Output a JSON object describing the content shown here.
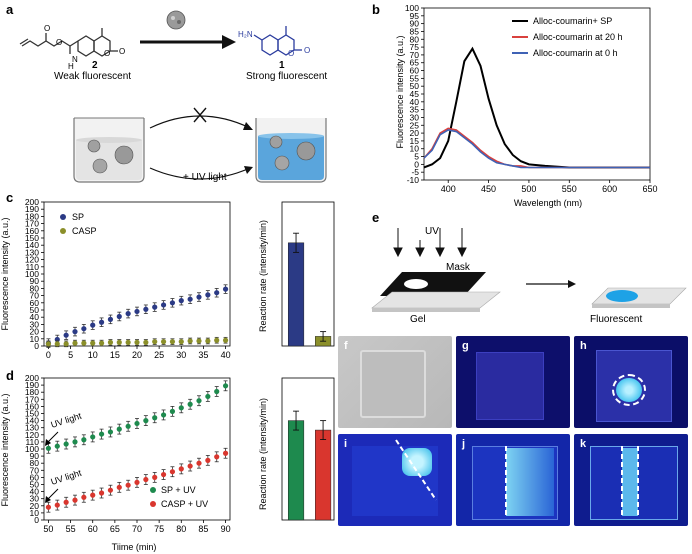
{
  "panel_a": {
    "label": "a",
    "compound2_number": "2",
    "compound2_caption": "Weak fluorescent",
    "compound1_number": "1",
    "compound1_caption": "Strong fluorescent",
    "uv_label": "+ UV light",
    "colors": {
      "molecule": "#333333",
      "product": "#2b3c9e",
      "liquid": "#5aa5dc"
    }
  },
  "panel_b": {
    "label": "b",
    "legend": [
      "Alloc-coumarin+ SP",
      "Alloc-coumarin at 20 h",
      "Alloc-coumarin at 0 h"
    ],
    "ylabel": "Fluorescence intensity (a.u.)",
    "xlabel": "Wavelength (nm)",
    "colors": [
      "#000000",
      "#d9413e",
      "#3f62b5"
    ]
  },
  "panel_c": {
    "label": "c",
    "ylabel": "Fluorescence intensity (a.u.)",
    "legend": [
      "SP",
      "CASP"
    ],
    "colors": [
      "#2b3a85",
      "#8b8f2a"
    ],
    "bar_ylabel": "Reaction rate (intensity/min)"
  },
  "panel_d": {
    "label": "d",
    "ylabel": "Fluorescence intensity (a.u.)",
    "xlabel": "Tiime (min)",
    "legend": [
      "SP + UV",
      "CASP + UV"
    ],
    "uv_annotations": [
      "UV light",
      "UV light"
    ],
    "colors": [
      "#1e8a4e",
      "#d9362e"
    ],
    "bar_ylabel": "Reaction rate (intensity/min)"
  },
  "panel_e": {
    "label": "e",
    "uv": "UV",
    "mask": "Mask",
    "gel": "Gel",
    "fluorescent": "Fluorescent"
  },
  "photos": [
    {
      "tag": "f",
      "tag_color": "#ffffff"
    },
    {
      "tag": "g",
      "tag_color": "#ffffff"
    },
    {
      "tag": "h",
      "tag_color": "#ffffff"
    },
    {
      "tag": "i",
      "tag_color": "#ffffff"
    },
    {
      "tag": "j",
      "tag_color": "#ffffff"
    },
    {
      "tag": "k",
      "tag_color": "#ffffff"
    }
  ],
  "chart_data": [
    {
      "id": "b",
      "type": "line",
      "title": "",
      "xlabel": "Wavelength (nm)",
      "ylabel": "Fluorescence intensity (a.u.)",
      "xlim": [
        370,
        650
      ],
      "ylim": [
        -10,
        100
      ],
      "xticks": [
        400,
        450,
        500,
        550,
        600,
        650
      ],
      "yticks": [
        -10,
        -5,
        0,
        5,
        10,
        15,
        20,
        25,
        30,
        35,
        40,
        45,
        50,
        55,
        60,
        65,
        70,
        75,
        80,
        85,
        90,
        95,
        100
      ],
      "legend_position": "top-right",
      "series": [
        {
          "name": "Alloc-coumarin+ SP",
          "x": [
            370,
            380,
            390,
            400,
            410,
            420,
            430,
            440,
            450,
            460,
            470,
            480,
            490,
            500,
            520,
            550,
            600,
            650
          ],
          "y": [
            -2,
            0,
            4,
            15,
            40,
            66,
            74,
            63,
            42,
            25,
            13,
            6,
            2,
            0,
            -1,
            -2,
            -2,
            -2
          ]
        },
        {
          "name": "Alloc-coumarin at 20 h",
          "x": [
            370,
            380,
            390,
            400,
            410,
            420,
            430,
            440,
            450,
            460,
            470,
            480,
            490,
            500,
            550,
            600,
            650
          ],
          "y": [
            4,
            10,
            20,
            23,
            22,
            18,
            14,
            9,
            5,
            2,
            0,
            -1,
            -1,
            -2,
            -2,
            -2,
            -2
          ]
        },
        {
          "name": "Alloc-coumarin at 0 h",
          "x": [
            370,
            380,
            390,
            400,
            410,
            420,
            430,
            440,
            450,
            460,
            470,
            480,
            490,
            500,
            550,
            600,
            650
          ],
          "y": [
            4,
            9,
            19,
            22,
            21,
            17,
            13,
            8,
            4,
            1,
            0,
            -1,
            -2,
            -2,
            -2,
            -2,
            -2
          ]
        }
      ]
    },
    {
      "id": "c-line",
      "type": "scatter",
      "xlabel": "",
      "ylabel": "Fluorescence intensity (a.u.)",
      "xlim": [
        -1,
        41
      ],
      "ylim": [
        0,
        200
      ],
      "xticks": [
        0,
        5,
        10,
        15,
        20,
        25,
        30,
        35,
        40
      ],
      "yticks": [
        0,
        10,
        20,
        30,
        40,
        50,
        60,
        70,
        80,
        90,
        100,
        110,
        120,
        130,
        140,
        150,
        160,
        170,
        180,
        190,
        200
      ],
      "legend_position": "top-left",
      "series": [
        {
          "name": "SP",
          "x": [
            0,
            2,
            4,
            6,
            8,
            10,
            12,
            14,
            16,
            18,
            20,
            22,
            24,
            26,
            28,
            30,
            32,
            34,
            36,
            38,
            40
          ],
          "y": [
            4,
            9,
            15,
            20,
            24,
            29,
            33,
            37,
            41,
            45,
            48,
            51,
            54,
            57,
            60,
            63,
            65,
            68,
            71,
            74,
            79
          ],
          "err": 6
        },
        {
          "name": "CASP",
          "x": [
            0,
            2,
            4,
            6,
            8,
            10,
            12,
            14,
            16,
            18,
            20,
            22,
            24,
            26,
            28,
            30,
            32,
            34,
            36,
            38,
            40
          ],
          "y": [
            3,
            3,
            3,
            4,
            4,
            4,
            4,
            5,
            5,
            5,
            5,
            5,
            6,
            6,
            6,
            6,
            7,
            7,
            7,
            8,
            8
          ],
          "err": 4
        }
      ]
    },
    {
      "id": "c-bar",
      "type": "bar",
      "ylabel": "Reaction rate (intensity/min)",
      "categories": [
        "SP",
        "CASP"
      ],
      "values": [
        2.15,
        0.2
      ],
      "errors": [
        0.2,
        0.1
      ],
      "ylim": [
        0,
        3
      ]
    },
    {
      "id": "d-line",
      "type": "scatter",
      "xlabel": "Tiime (min)",
      "ylabel": "Fluorescence intensity (a.u.)",
      "xlim": [
        49,
        91
      ],
      "ylim": [
        0,
        200
      ],
      "xticks": [
        50,
        55,
        60,
        65,
        70,
        75,
        80,
        85,
        90
      ],
      "yticks": [
        0,
        10,
        20,
        30,
        40,
        50,
        60,
        70,
        80,
        90,
        100,
        110,
        120,
        130,
        140,
        150,
        160,
        170,
        180,
        190,
        200
      ],
      "legend_position": "bottom-right",
      "series": [
        {
          "name": "SP + UV",
          "x": [
            50,
            52,
            54,
            56,
            58,
            60,
            62,
            64,
            66,
            68,
            70,
            72,
            74,
            76,
            78,
            80,
            82,
            84,
            86,
            88,
            90
          ],
          "y": [
            101,
            104,
            107,
            110,
            113,
            117,
            121,
            124,
            128,
            132,
            136,
            140,
            144,
            148,
            153,
            158,
            163,
            168,
            174,
            181,
            189
          ],
          "err": 7
        },
        {
          "name": "CASP + UV",
          "x": [
            50,
            52,
            54,
            56,
            58,
            60,
            62,
            64,
            66,
            68,
            70,
            72,
            74,
            76,
            78,
            80,
            82,
            84,
            86,
            88,
            90
          ],
          "y": [
            18,
            21,
            25,
            28,
            32,
            35,
            38,
            42,
            46,
            49,
            53,
            57,
            60,
            64,
            68,
            72,
            76,
            80,
            84,
            89,
            94
          ],
          "err": 7
        }
      ]
    },
    {
      "id": "d-bar",
      "type": "bar",
      "ylabel": "Reaction rate (intensity/min)",
      "categories": [
        "SP + UV",
        "CASP + UV"
      ],
      "values": [
        2.1,
        1.9
      ],
      "errors": [
        0.2,
        0.2
      ],
      "ylim": [
        0,
        3
      ]
    }
  ]
}
